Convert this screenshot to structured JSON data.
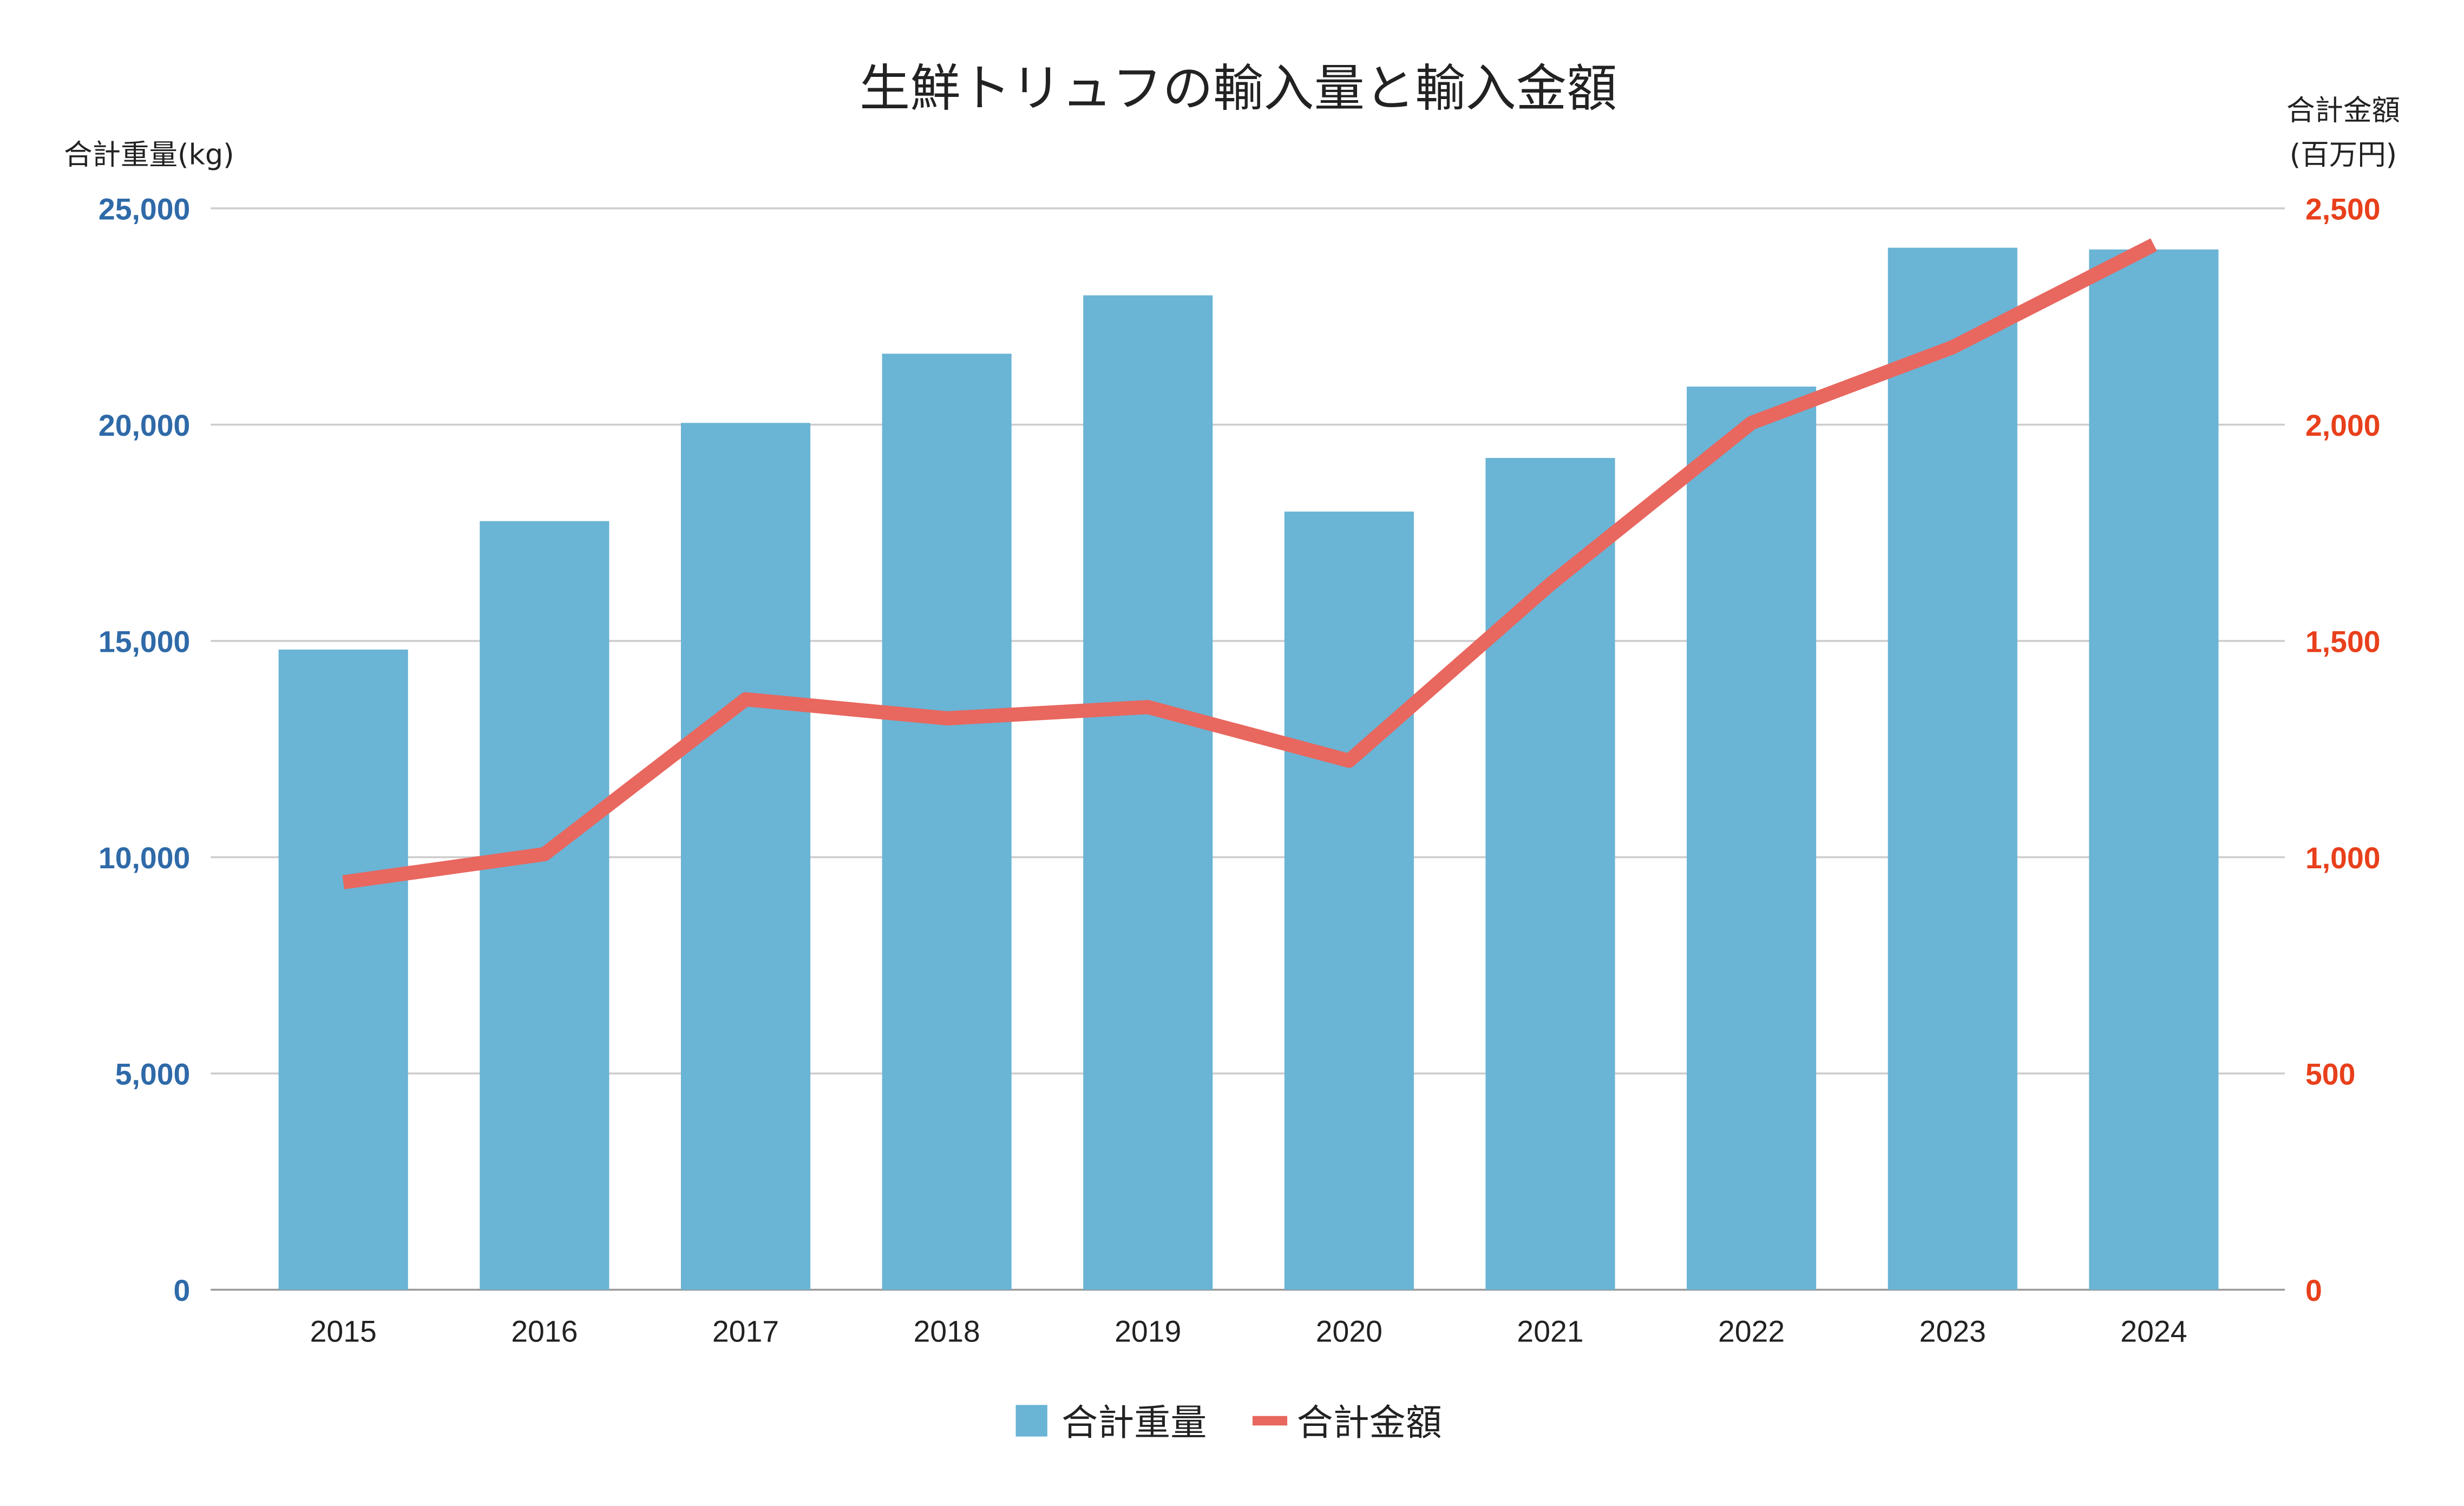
{
  "chart_data": {
    "type": "bar+line",
    "title": "生鮮トリュフの輸入量と輸入金額",
    "categories": [
      "2015",
      "2016",
      "2017",
      "2018",
      "2019",
      "2020",
      "2021",
      "2022",
      "2023",
      "2024"
    ],
    "series": [
      {
        "name": "合計重量",
        "type": "bar",
        "axis": "left",
        "color": "#6ab4d5",
        "values": [
          14800,
          17770,
          20040,
          21640,
          22990,
          17990,
          19230,
          20880,
          24090,
          24050
        ]
      },
      {
        "name": "合計金額",
        "type": "line",
        "axis": "right",
        "color": "#e8675f",
        "values": [
          942,
          1007,
          1365,
          1321,
          1347,
          1223,
          1631,
          2004,
          2179,
          2416
        ]
      }
    ],
    "y_left": {
      "label": "合計重量(kg)",
      "range": [
        0,
        25000
      ],
      "ticks": [
        "0",
        "5,000",
        "10,000",
        "15,000",
        "20,000",
        "25,000"
      ]
    },
    "y_right": {
      "label_line1": "合計金額",
      "label_line2": "(百万円)",
      "range": [
        0,
        2500
      ],
      "ticks": [
        "0",
        "500",
        "1,000",
        "1,500",
        "2,000",
        "2,500"
      ]
    },
    "grid": true,
    "legend": "bottom-center"
  }
}
